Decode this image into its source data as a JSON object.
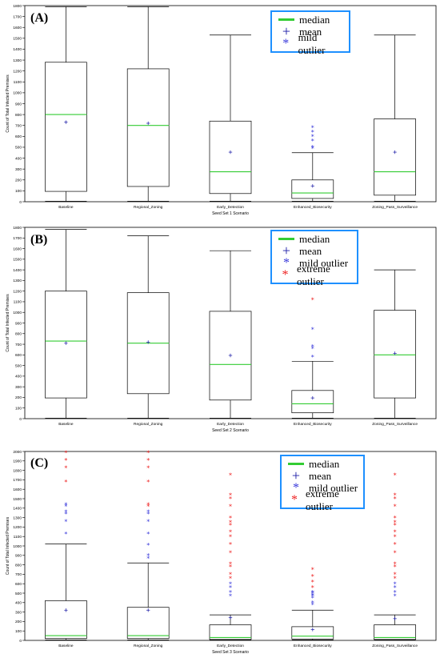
{
  "legend": {
    "median": "median",
    "mean": "mean",
    "mild": "mild outlier",
    "extreme": "extreme outlier"
  },
  "colors": {
    "median": "#33cc33",
    "mean": "#1a1aa6",
    "mild": "#3a3adb",
    "extreme": "#ee2222",
    "legend_border": "#1e90ff"
  },
  "chart_data": [
    {
      "type": "box",
      "panel_label": "(A)",
      "ylabel": "Count of Total Infected Premises",
      "xlabel": "Seed Set 1 Scenario",
      "ylim": [
        0,
        1800
      ],
      "yticks": [
        0,
        100,
        200,
        300,
        400,
        500,
        600,
        700,
        800,
        900,
        1000,
        1100,
        1200,
        1300,
        1400,
        1500,
        1600,
        1700,
        1800
      ],
      "categories": [
        "Baseline",
        "Regional_Zoning",
        "Early_Detection",
        "Enhanced_Biosecurity",
        "Zoning_Pass_Surveillance"
      ],
      "boxes": [
        {
          "min": 5,
          "q1": 95,
          "median": 800,
          "q3": 1280,
          "max": 1790,
          "mean": 730,
          "mild": [],
          "extreme": []
        },
        {
          "min": 5,
          "q1": 140,
          "median": 700,
          "q3": 1220,
          "max": 1790,
          "mean": 720,
          "mild": [],
          "extreme": []
        },
        {
          "min": 5,
          "q1": 75,
          "median": 275,
          "q3": 740,
          "max": 1530,
          "mean": 455,
          "mild": [],
          "extreme": []
        },
        {
          "min": 5,
          "q1": 30,
          "median": 80,
          "q3": 200,
          "max": 450,
          "mean": 145,
          "mild": [
            490,
            500,
            560,
            600,
            640,
            680
          ],
          "extreme": []
        },
        {
          "min": 5,
          "q1": 60,
          "median": 275,
          "q3": 760,
          "max": 1530,
          "mean": 455,
          "mild": [],
          "extreme": []
        }
      ]
    },
    {
      "type": "box",
      "panel_label": "(B)",
      "ylabel": "Count of Total Infected Premises",
      "xlabel": "Seed Set 2 Scenario",
      "ylim": [
        0,
        1800
      ],
      "yticks": [
        0,
        100,
        200,
        300,
        400,
        500,
        600,
        700,
        800,
        900,
        1000,
        1100,
        1200,
        1300,
        1400,
        1500,
        1600,
        1700,
        1800
      ],
      "categories": [
        "Baseline",
        "Regional_Zoning",
        "Early_Detection",
        "Enhanced_Biosecurity",
        "Zoning_Pass_Surveillance"
      ],
      "boxes": [
        {
          "min": 5,
          "q1": 195,
          "median": 730,
          "q3": 1200,
          "max": 1780,
          "mean": 710,
          "mild": [],
          "extreme": []
        },
        {
          "min": 5,
          "q1": 235,
          "median": 710,
          "q3": 1185,
          "max": 1720,
          "mean": 720,
          "mild": [],
          "extreme": []
        },
        {
          "min": 5,
          "q1": 175,
          "median": 510,
          "q3": 1010,
          "max": 1580,
          "mean": 595,
          "mild": [],
          "extreme": []
        },
        {
          "min": 5,
          "q1": 55,
          "median": 140,
          "q3": 265,
          "max": 540,
          "mean": 195,
          "mild": [
            580,
            660,
            680,
            840
          ],
          "extreme": [
            1120
          ]
        },
        {
          "min": 5,
          "q1": 195,
          "median": 600,
          "q3": 1020,
          "max": 1400,
          "mean": 615,
          "mild": [],
          "extreme": []
        }
      ]
    },
    {
      "type": "box",
      "panel_label": "(C)",
      "ylabel": "Count of Total Infected Premises",
      "xlabel": "Seed Set 3 Scenario",
      "ylim": [
        0,
        2000
      ],
      "yticks": [
        0,
        100,
        200,
        300,
        400,
        500,
        600,
        700,
        800,
        900,
        1000,
        1100,
        1200,
        1300,
        1400,
        1500,
        1600,
        1700,
        1800,
        1900,
        2000
      ],
      "categories": [
        "Baseline",
        "Regional_Zoning",
        "Early_Detection",
        "Enhanced_Biosecurity",
        "Zoning_Pass_Surveillance"
      ],
      "boxes": [
        {
          "min": 5,
          "q1": 20,
          "median": 50,
          "q3": 420,
          "max": 1020,
          "mean": 320,
          "mild": [
            1130,
            1260,
            1340,
            1360,
            1420,
            1440
          ],
          "extreme": [
            1680,
            1830,
            1910,
            1990
          ]
        },
        {
          "min": 5,
          "q1": 20,
          "median": 50,
          "q3": 350,
          "max": 820,
          "mean": 320,
          "mild": [
            870,
            900,
            1010,
            1130,
            1260,
            1340,
            1360
          ],
          "extreme": [
            1420,
            1440,
            1680,
            1830,
            1910,
            1990
          ]
        },
        {
          "min": 5,
          "q1": 10,
          "median": 30,
          "q3": 165,
          "max": 270,
          "mean": 240,
          "mild": [
            470,
            510,
            560,
            600
          ],
          "extreme": [
            660,
            700,
            780,
            810,
            930,
            1020,
            1100,
            1150,
            1220,
            1250,
            1300,
            1420,
            1500,
            1540,
            1750
          ]
        },
        {
          "min": 5,
          "q1": 15,
          "median": 45,
          "q3": 145,
          "max": 320,
          "mean": 115,
          "mild": [
            380,
            400,
            450,
            470,
            480,
            500,
            510
          ],
          "extreme": [
            560,
            620,
            680,
            750
          ]
        },
        {
          "min": 5,
          "q1": 10,
          "median": 30,
          "q3": 165,
          "max": 270,
          "mean": 230,
          "mild": [
            470,
            510,
            560,
            600
          ],
          "extreme": [
            660,
            700,
            780,
            810,
            930,
            1020,
            1100,
            1150,
            1220,
            1250,
            1300,
            1420,
            1500,
            1540,
            1750
          ]
        }
      ]
    }
  ]
}
